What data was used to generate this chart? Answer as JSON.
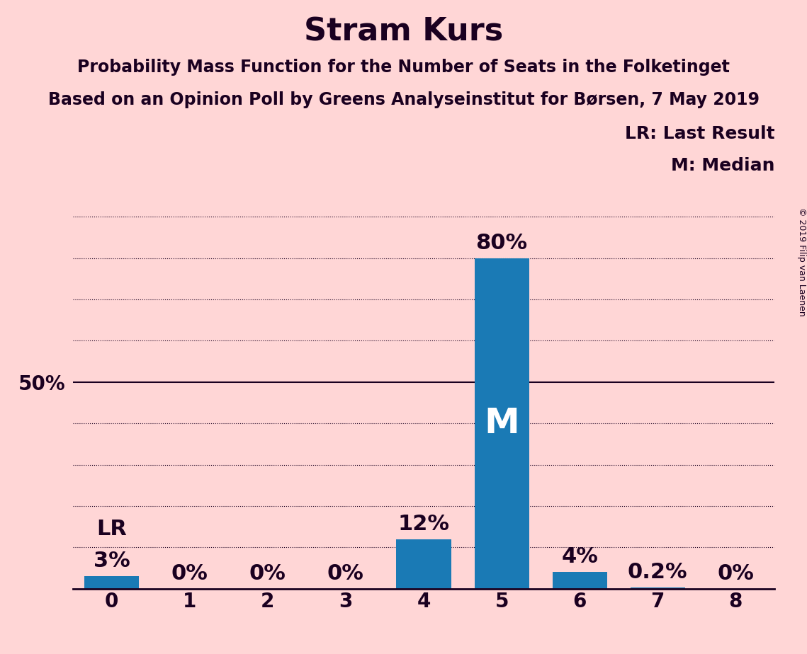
{
  "title": "Stram Kurs",
  "subtitle1": "Probability Mass Function for the Number of Seats in the Folketinget",
  "subtitle2": "Based on an Opinion Poll by Greens Analyseinstitut for Børsen, 7 May 2019",
  "copyright": "© 2019 Filip van Laenen",
  "categories": [
    0,
    1,
    2,
    3,
    4,
    5,
    6,
    7,
    8
  ],
  "values": [
    0.03,
    0.0,
    0.0,
    0.0,
    0.12,
    0.8,
    0.04,
    0.002,
    0.0
  ],
  "labels": [
    "3%",
    "0%",
    "0%",
    "0%",
    "12%",
    "80%",
    "4%",
    "0.2%",
    "0%"
  ],
  "bar_color": "#1a7ab5",
  "background_color": "#ffd6d6",
  "text_color": "#1a0020",
  "ylim": [
    0,
    0.95
  ],
  "ytick_val": 0.5,
  "ytick_label": "50%",
  "median_bar": 5,
  "lr_bar": 0,
  "legend_lr": "LR: Last Result",
  "legend_m": "M: Median",
  "title_fontsize": 32,
  "subtitle_fontsize": 17,
  "annotation_fontsize": 22,
  "tick_fontsize": 20,
  "m_fontsize": 36,
  "lr_fontsize": 22,
  "legend_fontsize": 18,
  "copyright_fontsize": 9,
  "grid_levels": [
    0.1,
    0.2,
    0.3,
    0.4,
    0.5,
    0.6,
    0.7,
    0.8,
    0.9
  ],
  "bar_width": 0.7
}
